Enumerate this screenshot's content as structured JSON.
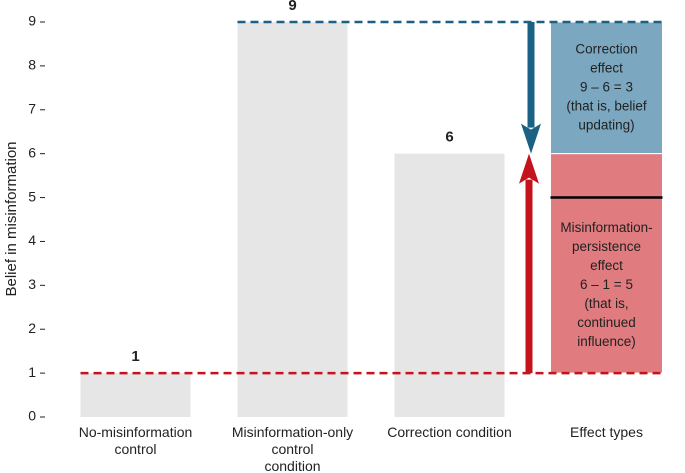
{
  "chart_data": {
    "type": "bar",
    "y_label": "Belief in misinformation",
    "categories": [
      "No-misinformation\ncontrol",
      "Misinformation-only\ncontrol\ncondition",
      "Correction condition",
      "Effect types"
    ],
    "values": [
      1,
      9,
      6,
      null
    ],
    "color": "#e6e6e6",
    "ylim": [
      0,
      9
    ],
    "yticks": [
      0,
      1,
      2,
      3,
      4,
      5,
      6,
      7,
      8,
      9
    ],
    "annotations": [
      {
        "text": "Correction\neffect\n9 – 6 = 3\n\n(that is, belief\nupdating)",
        "color": "#7ba7c0",
        "line_color": "#1a6184"
      },
      {
        "text": "Misinformation-\npersistence\neffect\n6 – 1 = 5\n\n(that is,\ncontinued\ninfluence)",
        "color": "#e07b7f",
        "line_color": "#c4131b"
      }
    ],
    "marker_line": 5
  }
}
